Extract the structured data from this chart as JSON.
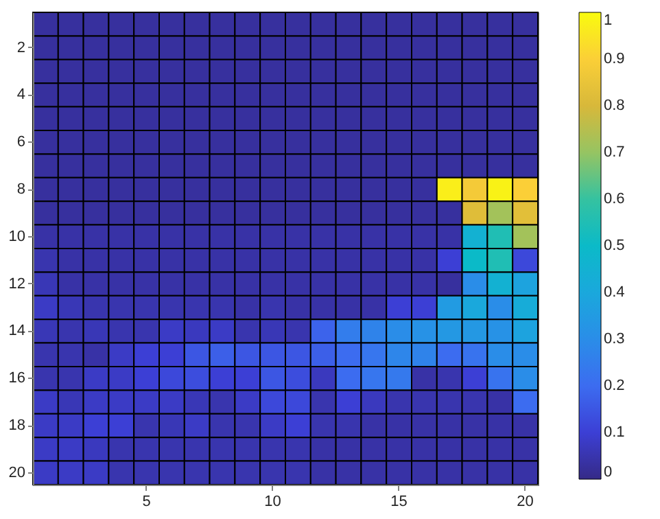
{
  "chart_data": {
    "type": "heatmap",
    "categories": [
      null,
      null,
      null,
      null,
      "5",
      null,
      null,
      null,
      null,
      "10",
      null,
      null,
      null,
      null,
      "15",
      null,
      null,
      null,
      null,
      "20"
    ],
    "y_categories": [
      null,
      "2",
      null,
      "4",
      null,
      "6",
      null,
      "8",
      null,
      "10",
      null,
      "12",
      null,
      "14",
      null,
      "16",
      null,
      "18",
      null,
      "20"
    ],
    "cells": [
      [
        0.03,
        0.03,
        0.03,
        0.03,
        0.03,
        0.03,
        0.03,
        0.03,
        0.03,
        0.03,
        0.03,
        0.03,
        0.03,
        0.03,
        0.03,
        0.03,
        0.03,
        0.03,
        0.03,
        0.03
      ],
      [
        0.03,
        0.03,
        0.03,
        0.03,
        0.03,
        0.03,
        0.03,
        0.03,
        0.03,
        0.03,
        0.03,
        0.03,
        0.03,
        0.03,
        0.03,
        0.03,
        0.03,
        0.03,
        0.03,
        0.03
      ],
      [
        0.03,
        0.03,
        0.03,
        0.03,
        0.03,
        0.03,
        0.03,
        0.03,
        0.03,
        0.03,
        0.03,
        0.03,
        0.03,
        0.03,
        0.03,
        0.03,
        0.03,
        0.03,
        0.03,
        0.03
      ],
      [
        0.03,
        0.03,
        0.03,
        0.03,
        0.03,
        0.03,
        0.03,
        0.03,
        0.03,
        0.03,
        0.03,
        0.03,
        0.03,
        0.03,
        0.03,
        0.03,
        0.03,
        0.03,
        0.03,
        0.03
      ],
      [
        0.03,
        0.03,
        0.03,
        0.03,
        0.03,
        0.03,
        0.03,
        0.03,
        0.03,
        0.03,
        0.03,
        0.03,
        0.03,
        0.03,
        0.03,
        0.03,
        0.03,
        0.03,
        0.03,
        0.03
      ],
      [
        0.03,
        0.03,
        0.03,
        0.03,
        0.03,
        0.03,
        0.03,
        0.03,
        0.03,
        0.03,
        0.03,
        0.03,
        0.03,
        0.03,
        0.03,
        0.03,
        0.03,
        0.03,
        0.03,
        0.03
      ],
      [
        0.03,
        0.03,
        0.03,
        0.03,
        0.03,
        0.03,
        0.03,
        0.03,
        0.03,
        0.03,
        0.03,
        0.03,
        0.03,
        0.03,
        0.03,
        0.03,
        0.03,
        0.03,
        0.03,
        0.03
      ],
      [
        0.03,
        0.03,
        0.03,
        0.03,
        0.03,
        0.03,
        0.03,
        0.03,
        0.03,
        0.03,
        0.03,
        0.03,
        0.03,
        0.03,
        0.03,
        0.03,
        0.97,
        0.88,
        0.98,
        0.9
      ],
      [
        0.03,
        0.03,
        0.03,
        0.03,
        0.03,
        0.03,
        0.03,
        0.03,
        0.03,
        0.03,
        0.03,
        0.03,
        0.03,
        0.03,
        0.03,
        0.03,
        0.03,
        0.82,
        0.72,
        0.83
      ],
      [
        0.04,
        0.04,
        0.04,
        0.04,
        0.04,
        0.04,
        0.04,
        0.04,
        0.04,
        0.04,
        0.04,
        0.04,
        0.04,
        0.04,
        0.04,
        0.04,
        0.04,
        0.45,
        0.55,
        0.72
      ],
      [
        0.05,
        0.04,
        0.04,
        0.04,
        0.04,
        0.04,
        0.04,
        0.04,
        0.04,
        0.04,
        0.04,
        0.04,
        0.04,
        0.04,
        0.04,
        0.04,
        0.1,
        0.5,
        0.55,
        0.12
      ],
      [
        0.06,
        0.04,
        0.04,
        0.04,
        0.04,
        0.04,
        0.04,
        0.04,
        0.04,
        0.04,
        0.04,
        0.04,
        0.04,
        0.04,
        0.04,
        0.04,
        0.03,
        0.3,
        0.45,
        0.38
      ],
      [
        0.08,
        0.06,
        0.05,
        0.05,
        0.05,
        0.05,
        0.05,
        0.05,
        0.04,
        0.05,
        0.04,
        0.04,
        0.04,
        0.04,
        0.1,
        0.1,
        0.35,
        0.4,
        0.3,
        0.42
      ],
      [
        0.06,
        0.05,
        0.06,
        0.05,
        0.05,
        0.08,
        0.07,
        0.08,
        0.05,
        0.06,
        0.05,
        0.18,
        0.25,
        0.27,
        0.3,
        0.32,
        0.34,
        0.34,
        0.32,
        0.38
      ],
      [
        0.05,
        0.05,
        0.04,
        0.08,
        0.1,
        0.1,
        0.15,
        0.17,
        0.15,
        0.15,
        0.15,
        0.17,
        0.2,
        0.23,
        0.28,
        0.27,
        0.2,
        0.22,
        0.3,
        0.3
      ],
      [
        0.05,
        0.05,
        0.08,
        0.08,
        0.1,
        0.12,
        0.13,
        0.1,
        0.1,
        0.15,
        0.13,
        0.07,
        0.2,
        0.23,
        0.24,
        0.04,
        0.05,
        0.1,
        0.22,
        0.3
      ],
      [
        0.08,
        0.06,
        0.08,
        0.08,
        0.08,
        0.08,
        0.06,
        0.05,
        0.08,
        0.12,
        0.12,
        0.05,
        0.1,
        0.07,
        0.05,
        0.05,
        0.05,
        0.05,
        0.04,
        0.2
      ],
      [
        0.08,
        0.08,
        0.1,
        0.1,
        0.05,
        0.06,
        0.08,
        0.05,
        0.05,
        0.08,
        0.1,
        0.05,
        0.05,
        0.04,
        0.04,
        0.04,
        0.04,
        0.04,
        0.04,
        0.04
      ],
      [
        0.08,
        0.08,
        0.07,
        0.05,
        0.05,
        0.05,
        0.05,
        0.05,
        0.05,
        0.05,
        0.05,
        0.04,
        0.04,
        0.04,
        0.04,
        0.04,
        0.04,
        0.04,
        0.04,
        0.04
      ],
      [
        0.08,
        0.08,
        0.08,
        0.05,
        0.05,
        0.05,
        0.05,
        0.05,
        0.05,
        0.05,
        0.05,
        0.04,
        0.04,
        0.04,
        0.04,
        0.04,
        0.04,
        0.04,
        0.04,
        0.04
      ]
    ],
    "clim": [
      0,
      1
    ],
    "cticks": [
      0,
      0.1,
      0.2,
      0.3,
      0.4,
      0.5,
      0.6,
      0.7,
      0.8,
      0.9,
      1
    ],
    "colors": [
      "#352a87",
      "#3c3fd5",
      "#3c6cf0",
      "#2a8de8",
      "#1aa8dc",
      "#0bbac8",
      "#35c2a0",
      "#96c462",
      "#d8b83a",
      "#fbcf37",
      "#f9fb0e"
    ]
  }
}
